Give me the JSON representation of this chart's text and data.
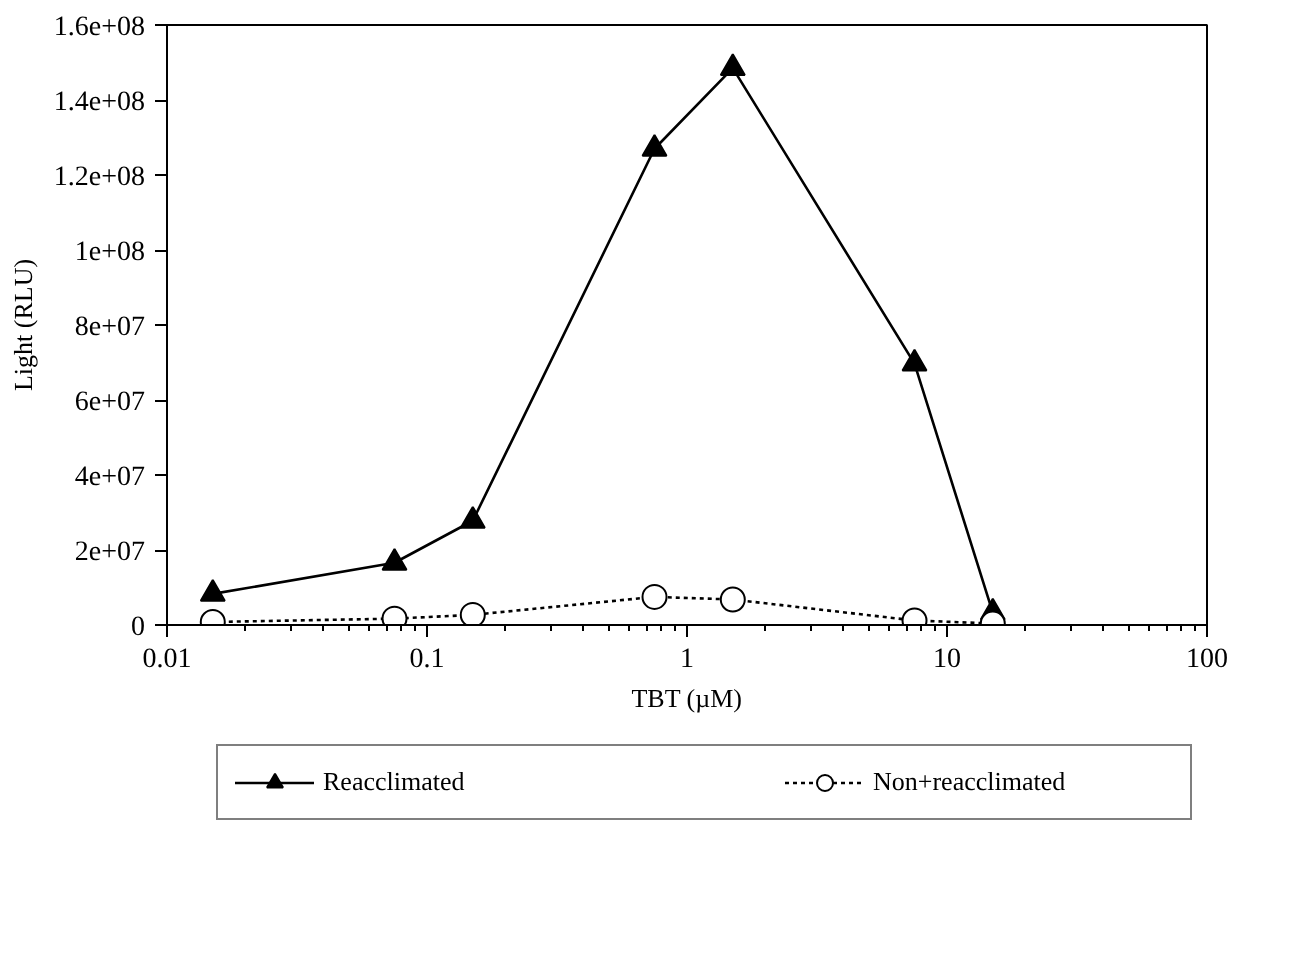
{
  "chart_data": {
    "type": "line",
    "xlabel": "TBT (µM)",
    "ylabel": "Light (RLU)",
    "log": "x",
    "x": [
      0.015,
      0.075,
      0.15,
      0.75,
      1.5,
      7.5,
      15
    ],
    "series": [
      {
        "name": "Reacclimated",
        "color": "#000000",
        "values": [
          8300000,
          16600000,
          27800000,
          127000000,
          148500000,
          69700000,
          3300000
        ],
        "marker": "triangle",
        "line_style": "solid"
      },
      {
        "name": "Non+reacclimated",
        "color": "#000000",
        "values": [
          800000,
          1700000,
          2700000,
          7500000,
          6800000,
          1200000,
          400000
        ],
        "marker": "circle",
        "line_style": "dotted"
      }
    ],
    "xlim": [
      0.01,
      100
    ],
    "xticks": [
      0.01,
      0.1,
      1,
      10,
      100
    ],
    "ylim": [
      0,
      160000000
    ],
    "yticks": [
      0,
      {
        "value": 20000000,
        "label": "2e+07"
      },
      {
        "value": 40000000,
        "label": "4e+07"
      },
      {
        "value": 60000000,
        "label": "6e+07"
      },
      {
        "value": 80000000,
        "label": "8e+07"
      },
      {
        "value": 100000000,
        "label": "1e+08"
      },
      {
        "value": 120000000,
        "label": "1.2e+08"
      },
      {
        "value": 140000000,
        "label": "1.4e+08"
      },
      {
        "value": 160000000,
        "label": "1.6e+08"
      }
    ],
    "legend": "bottom"
  }
}
